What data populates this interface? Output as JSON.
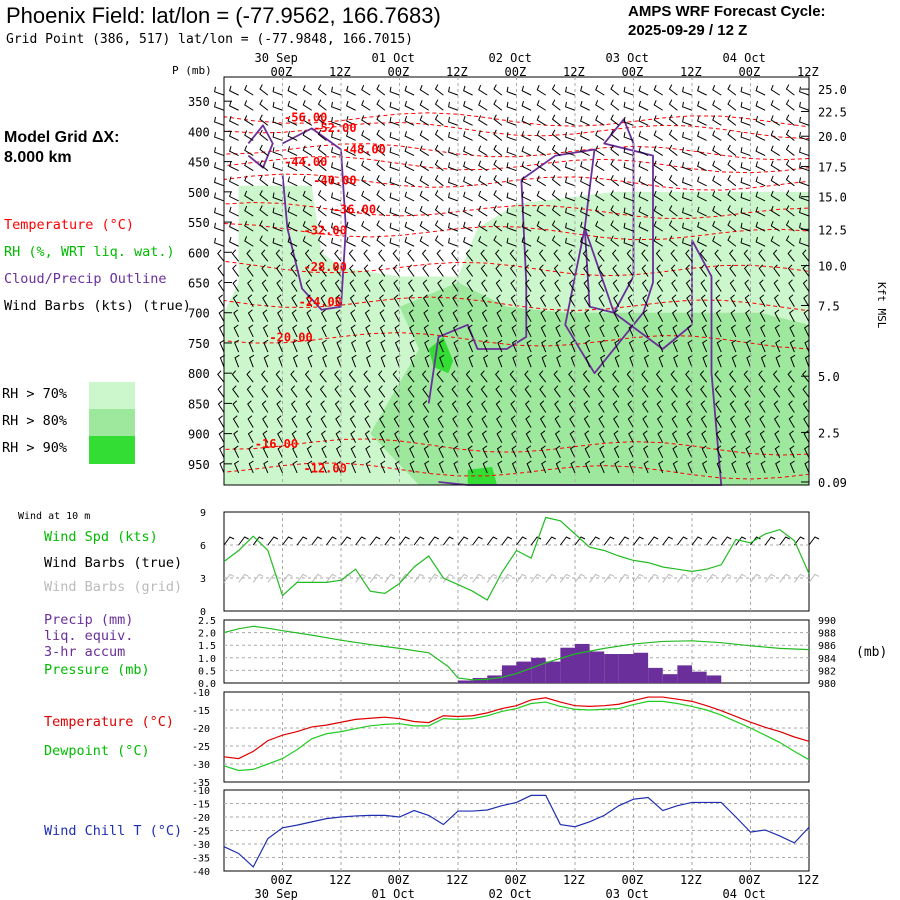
{
  "header": {
    "title": "Phoenix Field:  lat/lon = (-77.9562, 166.7683)",
    "subtitle": "Grid Point (386, 517) lat/lon = (-77.9848, 166.7015)",
    "cycle_line1": "AMPS WRF Forecast Cycle:",
    "cycle_line2": "2025-09-29 / 12  Z",
    "grid_dx_line1": "Model Grid ΔX:",
    "grid_dx_line2": " 8.000 km"
  },
  "legend": {
    "temperature": "Temperature (°C)",
    "rh": "RH (%, WRT liq. wat.)",
    "cloud": "Cloud/Precip Outline",
    "wind": "Wind Barbs (kts) (true)",
    "rh70": "RH > 70%",
    "rh80": "RH > 80%",
    "rh90": "RH > 90%"
  },
  "colors": {
    "temperature": "#ff0000",
    "rh": "#00cc00",
    "cloud": "#6a2f9a",
    "rh70": "#ccf7cc",
    "rh80": "#9de89d",
    "rh90": "#33dd33",
    "wind_grid": "#bbbbbb",
    "precip": "#6a2f9a",
    "pressure": "#22bb22",
    "dewpoint": "#22cc22",
    "windchill": "#1f2fb0"
  },
  "time_axis": {
    "hour_labels": [
      "00Z",
      "12Z",
      "00Z",
      "12Z",
      "00Z",
      "12Z",
      "00Z",
      "12Z",
      "00Z",
      "12Z"
    ],
    "hour_values": [
      12,
      24,
      36,
      48,
      60,
      72,
      84,
      96,
      108,
      120
    ],
    "date_labels": [
      "30 Sep",
      "01 Oct",
      "02 Oct",
      "03 Oct",
      "04 Oct"
    ],
    "date_values": [
      12,
      36,
      60,
      84,
      108
    ]
  },
  "chart_data": [
    {
      "type": "contour",
      "id": "cross-section",
      "ylabel_left": "P (mb)",
      "ylabel_right": "Kft MSL",
      "pressure_ticks": [
        350,
        400,
        450,
        500,
        550,
        600,
        650,
        700,
        750,
        800,
        850,
        900,
        950
      ],
      "ylim": [
        310,
        985
      ],
      "kft_ticks": [
        {
          "label": "25.0",
          "p": 330
        },
        {
          "label": "22.5",
          "p": 367
        },
        {
          "label": "20.0",
          "p": 408
        },
        {
          "label": "17.5",
          "p": 458
        },
        {
          "label": "15.0",
          "p": 508
        },
        {
          "label": "12.5",
          "p": 562
        },
        {
          "label": "10.0",
          "p": 622
        },
        {
          "label": "7.5",
          "p": 688
        },
        {
          "label": "5.0",
          "p": 805
        },
        {
          "label": "2.5",
          "p": 898
        },
        {
          "label": "0.09",
          "p": 980
        }
      ],
      "temperature_contours": [
        {
          "label": "-56.00",
          "h": 16,
          "p": 377
        },
        {
          "label": "-52.00",
          "h": 22,
          "p": 394
        },
        {
          "label": "-48.00",
          "h": 28,
          "p": 430
        },
        {
          "label": "-44.00",
          "h": 16,
          "p": 451
        },
        {
          "label": "-40.00",
          "h": 22,
          "p": 481
        },
        {
          "label": "-36.00",
          "h": 26,
          "p": 529
        },
        {
          "label": "-32.00",
          "h": 20,
          "p": 564
        },
        {
          "label": "-28.00",
          "h": 20,
          "p": 624
        },
        {
          "label": "-24.00",
          "h": 19,
          "p": 682
        },
        {
          "label": "-20.00",
          "h": 13,
          "p": 741
        },
        {
          "label": "-16.00",
          "h": 10,
          "p": 917
        },
        {
          "label": "-12.00",
          "h": 20,
          "p": 958
        }
      ]
    },
    {
      "type": "line",
      "id": "wind-speed",
      "title": "Wind at 10 m",
      "series_label": "Wind Spd (kts)",
      "barbs_true_label": "Wind Barbs (true)",
      "barbs_grid_label": "Wind Barbs (grid)",
      "ylim": [
        0,
        9
      ],
      "y_ticks": [
        0,
        3,
        6,
        9
      ],
      "x": [
        0,
        3,
        6,
        9,
        12,
        15,
        18,
        21,
        24,
        27,
        30,
        33,
        36,
        39,
        42,
        45,
        48,
        51,
        54,
        57,
        60,
        63,
        66,
        69,
        72,
        75,
        78,
        81,
        84,
        87,
        90,
        93,
        96,
        99,
        102,
        105,
        108,
        111,
        114,
        117,
        120
      ],
      "values": [
        4.5,
        5.5,
        6.8,
        5.5,
        1.4,
        2.6,
        2.6,
        2.6,
        2.8,
        3.8,
        1.8,
        1.6,
        2.5,
        4.0,
        5.0,
        3.0,
        2.4,
        1.8,
        1.0,
        3.5,
        5.5,
        4.8,
        8.5,
        8.2,
        7.0,
        5.8,
        5.5,
        5.0,
        4.6,
        4.4,
        4.0,
        3.8,
        3.6,
        3.8,
        4.2,
        6.5,
        6.2,
        7.0,
        7.4,
        6.4,
        3.4
      ]
    },
    {
      "type": "bar+line",
      "id": "precip-pressure",
      "labels": [
        "Precip (mm)",
        "liq. equiv.",
        "3-hr accum",
        "Pressure (mb)"
      ],
      "ylabel_right": "(mb)",
      "precip_ylim": [
        0,
        2.5
      ],
      "precip_ticks": [
        "0.0",
        "0.5",
        "1.0",
        "1.5",
        "2.0",
        "2.5"
      ],
      "pressure_ylim": [
        980,
        990
      ],
      "pressure_ticks": [
        "980",
        "982",
        "984",
        "986",
        "988",
        "990"
      ],
      "precip_x": [
        48,
        51,
        54,
        57,
        60,
        63,
        66,
        69,
        72,
        75,
        78,
        81,
        84,
        87,
        90,
        93,
        96,
        99
      ],
      "precip_values": [
        0.1,
        0.2,
        0.3,
        0.7,
        0.85,
        1.0,
        0.85,
        1.4,
        1.55,
        1.25,
        1.15,
        1.15,
        1.2,
        0.6,
        0.35,
        0.7,
        0.45,
        0.3
      ],
      "pressure_x": [
        0,
        3,
        6,
        9,
        12,
        18,
        24,
        30,
        36,
        42,
        46,
        48,
        51,
        54,
        57,
        60,
        66,
        72,
        78,
        84,
        90,
        96,
        102,
        108,
        114,
        120
      ],
      "pressure_values": [
        988.0,
        988.6,
        989.0,
        988.7,
        988.3,
        987.6,
        986.8,
        986.1,
        985.5,
        984.8,
        982.6,
        980.8,
        980.5,
        980.6,
        980.9,
        981.5,
        983.2,
        984.6,
        985.5,
        986.2,
        986.6,
        986.7,
        986.4,
        985.9,
        985.5,
        985.3
      ]
    },
    {
      "type": "line",
      "id": "temperature-dewpoint",
      "labels": [
        "Temperature (°C)",
        "Dewpoint (°C)"
      ],
      "ylim": [
        -35,
        -10
      ],
      "y_ticks": [
        -35,
        -30,
        -25,
        -20,
        -15,
        -10
      ],
      "x": [
        0,
        3,
        6,
        9,
        12,
        15,
        18,
        21,
        24,
        27,
        30,
        33,
        36,
        39,
        42,
        45,
        48,
        51,
        54,
        57,
        60,
        63,
        66,
        69,
        72,
        75,
        78,
        81,
        84,
        87,
        90,
        93,
        96,
        99,
        102,
        105,
        108,
        111,
        114,
        117,
        120
      ],
      "temperature": [
        -28.0,
        -28.5,
        -26.5,
        -23.5,
        -22.0,
        -21.0,
        -19.7,
        -19.2,
        -18.4,
        -17.6,
        -17.3,
        -17.0,
        -17.4,
        -18.2,
        -18.5,
        -16.6,
        -16.8,
        -16.6,
        -15.8,
        -14.6,
        -13.8,
        -12.2,
        -11.6,
        -12.8,
        -13.8,
        -14.0,
        -13.8,
        -13.4,
        -12.4,
        -11.4,
        -11.4,
        -12.0,
        -12.6,
        -13.8,
        -15.2,
        -16.8,
        -18.4,
        -19.8,
        -21.0,
        -22.5,
        -23.7
      ],
      "dewpoint": [
        -30.5,
        -31.8,
        -31.5,
        -30.0,
        -28.5,
        -26.0,
        -23.0,
        -21.6,
        -21.0,
        -20.2,
        -19.4,
        -19.0,
        -18.8,
        -19.4,
        -19.4,
        -17.4,
        -17.6,
        -17.4,
        -16.6,
        -15.4,
        -14.6,
        -13.2,
        -12.8,
        -14.0,
        -14.8,
        -15.0,
        -14.8,
        -14.6,
        -13.5,
        -12.6,
        -12.6,
        -13.2,
        -14.0,
        -15.0,
        -16.4,
        -18.2,
        -20.0,
        -22.0,
        -24.0,
        -26.5,
        -28.8
      ]
    },
    {
      "type": "line",
      "id": "wind-chill",
      "series_label": "Wind Chill T (°C)",
      "ylim": [
        -40,
        -10
      ],
      "y_ticks": [
        -40,
        -35,
        -30,
        -25,
        -20,
        -15,
        -10
      ],
      "x": [
        0,
        3,
        6,
        9,
        12,
        15,
        18,
        21,
        24,
        27,
        30,
        33,
        36,
        39,
        42,
        45,
        48,
        51,
        54,
        57,
        60,
        63,
        66,
        69,
        72,
        75,
        78,
        81,
        84,
        87,
        90,
        93,
        96,
        99,
        102,
        105,
        108,
        111,
        114,
        117,
        120
      ],
      "values": [
        -31.0,
        -33.5,
        -38.5,
        -28.0,
        -24.0,
        -23.0,
        -21.8,
        -20.6,
        -20.0,
        -19.6,
        -19.4,
        -19.4,
        -20.0,
        -17.6,
        -19.4,
        -22.8,
        -17.8,
        -17.8,
        -17.4,
        -15.8,
        -14.6,
        -12.0,
        -12.0,
        -22.8,
        -23.6,
        -21.8,
        -19.4,
        -15.8,
        -13.4,
        -12.8,
        -17.6,
        -15.8,
        -14.6,
        -14.6,
        -14.6,
        -20.0,
        -25.6,
        -24.8,
        -27.0,
        -29.6,
        -23.8
      ]
    }
  ]
}
